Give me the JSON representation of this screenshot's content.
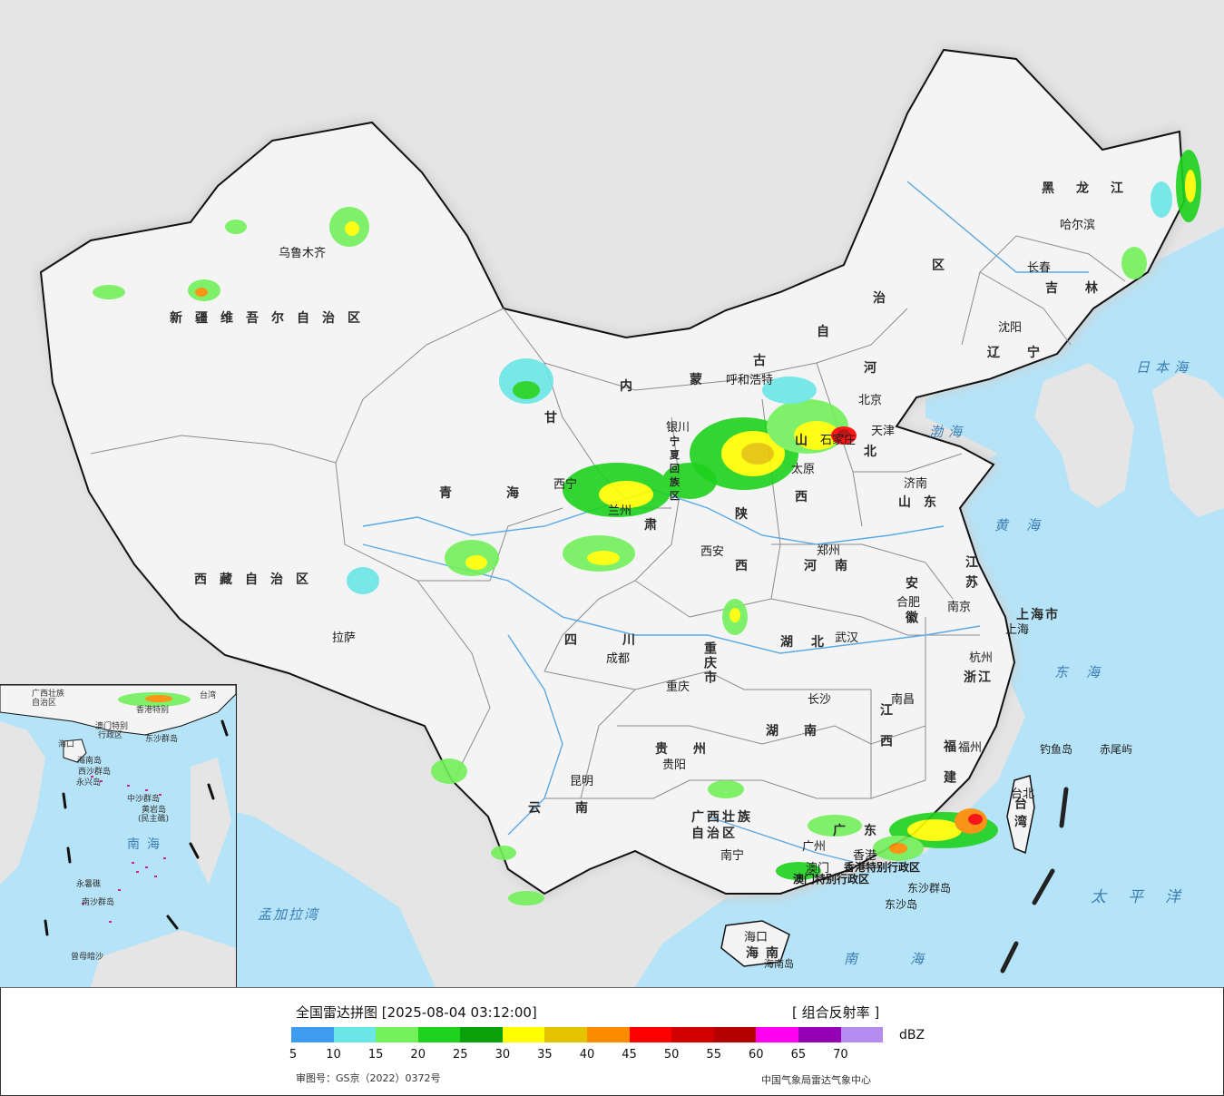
{
  "colors": {
    "land": "#f4f4f4",
    "outside": "#e5e5e5",
    "sea": "#b5e3f7",
    "border": "#111111",
    "province_border": "#888888",
    "river": "#5aa9e6"
  },
  "legend": {
    "title": "全国雷达拼图 [2025-08-04 03:12:00]",
    "product": "[ 组合反射率 ]",
    "unit": "dBZ",
    "ticks": [
      "5",
      "10",
      "15",
      "20",
      "25",
      "30",
      "35",
      "40",
      "45",
      "50",
      "55",
      "60",
      "65",
      "70"
    ],
    "colors": [
      "#3d9cf0",
      "#6ae6e6",
      "#73f05a",
      "#1ed21e",
      "#0aa00a",
      "#ffff00",
      "#e6c300",
      "#ff8c00",
      "#ff0000",
      "#d20000",
      "#b40000",
      "#ff00f0",
      "#9600b4",
      "#b48cf0"
    ],
    "approval": "审图号：GS京（2022）0372号",
    "source": "中国气象局雷达气象中心"
  },
  "provinces": [
    {
      "name": "新疆维吾尔自治区",
      "id": "xinjiang"
    },
    {
      "name": "西藏自治区",
      "id": "xizang"
    },
    {
      "name": "青海",
      "id": "qinghai"
    },
    {
      "name": "甘",
      "id": "gansu-1"
    },
    {
      "name": "肃",
      "id": "gansu-2"
    },
    {
      "name": "内",
      "id": "neimenggu-1"
    },
    {
      "name": "蒙",
      "id": "neimenggu-2"
    },
    {
      "name": "古",
      "id": "neimenggu-3"
    },
    {
      "name": "自",
      "id": "neimenggu-4"
    },
    {
      "name": "治",
      "id": "neimenggu-5"
    },
    {
      "name": "区",
      "id": "neimenggu-6"
    },
    {
      "name": "黑龙江",
      "id": "heilongjiang"
    },
    {
      "name": "吉林",
      "id": "jilin"
    },
    {
      "name": "辽宁",
      "id": "liaoning"
    },
    {
      "name": "河",
      "id": "hebei-1"
    },
    {
      "name": "北",
      "id": "hebei-2"
    },
    {
      "name": "山",
      "id": "shanxi-1"
    },
    {
      "name": "西",
      "id": "shanxi-2"
    },
    {
      "name": "山东",
      "id": "shandong"
    },
    {
      "name": "河南",
      "id": "henan"
    },
    {
      "name": "陕",
      "id": "shaanxi-1"
    },
    {
      "name": "西",
      "id": "shaanxi-2"
    },
    {
      "name": "四川",
      "id": "sichuan"
    },
    {
      "name": "重庆市",
      "id": "chongqing"
    },
    {
      "name": "湖北",
      "id": "hubei"
    },
    {
      "name": "湖南",
      "id": "hunan"
    },
    {
      "name": "贵州",
      "id": "guizhou"
    },
    {
      "name": "云南",
      "id": "yunnan"
    },
    {
      "name": "广西壮族",
      "id": "guangxi-1"
    },
    {
      "name": "自治区",
      "id": "guangxi-2"
    },
    {
      "name": "广东",
      "id": "guangdong"
    },
    {
      "name": "江西",
      "id": "jiangxi"
    },
    {
      "name": "福建",
      "id": "fujian"
    },
    {
      "name": "浙江",
      "id": "zhejiang"
    },
    {
      "name": "江苏",
      "id": "jiangsu"
    },
    {
      "name": "安徽",
      "id": "anhui"
    },
    {
      "name": "上海市",
      "id": "shanghai"
    },
    {
      "name": "台湾",
      "id": "taiwan"
    },
    {
      "name": "海南",
      "id": "hainan"
    },
    {
      "name": "宁",
      "id": "ningxia-1"
    },
    {
      "name": "夏",
      "id": "ningxia-2"
    },
    {
      "name": "回",
      "id": "ningxia-3"
    },
    {
      "name": "族",
      "id": "ningxia-4"
    },
    {
      "name": "区",
      "id": "ningxia-5"
    }
  ],
  "cities": [
    {
      "name": "乌鲁木齐"
    },
    {
      "name": "拉萨"
    },
    {
      "name": "西宁"
    },
    {
      "name": "兰州"
    },
    {
      "name": "银川"
    },
    {
      "name": "呼和浩特"
    },
    {
      "name": "北京"
    },
    {
      "name": "天津"
    },
    {
      "name": "石家庄"
    },
    {
      "name": "太原"
    },
    {
      "name": "济南"
    },
    {
      "name": "郑州"
    },
    {
      "name": "西安"
    },
    {
      "name": "成都"
    },
    {
      "name": "重庆"
    },
    {
      "name": "武汉"
    },
    {
      "name": "合肥"
    },
    {
      "name": "南京"
    },
    {
      "name": "上海"
    },
    {
      "name": "杭州"
    },
    {
      "name": "南昌"
    },
    {
      "name": "长沙"
    },
    {
      "name": "贵阳"
    },
    {
      "name": "昆明"
    },
    {
      "name": "南宁"
    },
    {
      "name": "广州"
    },
    {
      "name": "香港"
    },
    {
      "name": "澳门"
    },
    {
      "name": "福州"
    },
    {
      "name": "台北"
    },
    {
      "name": "海口"
    },
    {
      "name": "沈阳"
    },
    {
      "name": "长春"
    },
    {
      "name": "哈尔滨"
    }
  ],
  "special": [
    {
      "name": "香港特别行政区"
    },
    {
      "name": "澳门特别行政区"
    }
  ],
  "seas": [
    {
      "name": "日本海"
    },
    {
      "name": "渤海"
    },
    {
      "name": "黄海"
    },
    {
      "name": "东海"
    },
    {
      "name": "太平洋"
    },
    {
      "name": "南海"
    },
    {
      "name": "孟加拉湾"
    }
  ],
  "islands": [
    {
      "name": "钓鱼岛"
    },
    {
      "name": "赤尾屿"
    },
    {
      "name": "东沙群岛"
    },
    {
      "name": "东沙岛"
    },
    {
      "name": "海南岛"
    }
  ],
  "inset": {
    "labels": [
      {
        "name": "广西壮族"
      },
      {
        "name": "自治区"
      },
      {
        "name": "台湾"
      },
      {
        "name": "香港特别"
      },
      {
        "name": "澳门特别"
      },
      {
        "name": "行政区"
      },
      {
        "name": "东沙群岛"
      },
      {
        "name": "海口"
      },
      {
        "name": "海南岛"
      },
      {
        "name": "西沙群岛"
      },
      {
        "name": "永兴岛"
      },
      {
        "name": "中沙群岛"
      },
      {
        "name": "黄岩岛"
      },
      {
        "name": "(民主礁)"
      },
      {
        "name": "永暑礁"
      },
      {
        "name": "南沙群岛"
      },
      {
        "name": "曾母暗沙"
      },
      {
        "name": "南海"
      }
    ]
  }
}
